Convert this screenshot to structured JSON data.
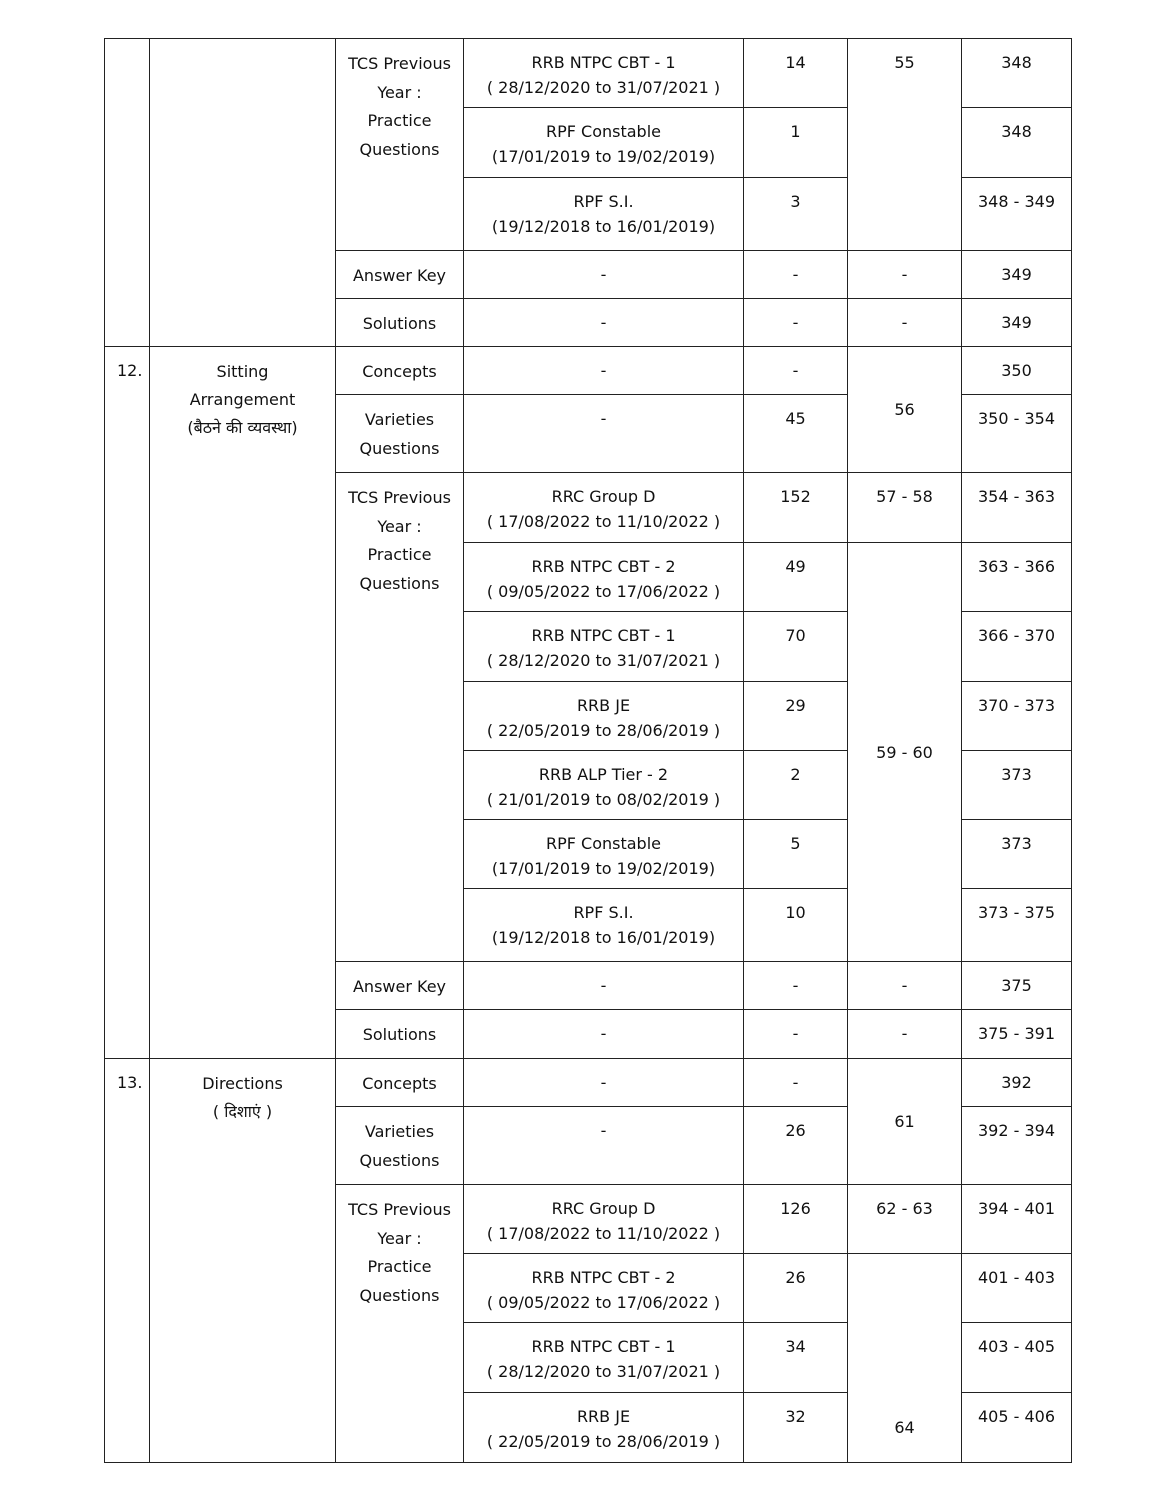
{
  "table": {
    "rows": [
      [
        "",
        "",
        "TCS Previous\nYear :\nPractice\nQuestions",
        "RRB NTPC CBT - 1\n( 28/12/2020 to 31/07/2021 )",
        "14",
        "55",
        "348"
      ],
      [
        "RPF Constable\n(17/01/2019 to 19/02/2019)",
        "1",
        "348"
      ],
      [
        "RPF S.I.\n(19/12/2018 to 16/01/2019)",
        "3",
        "348 - 349"
      ],
      [
        "Answer Key",
        "-",
        "-",
        "-",
        "349"
      ],
      [
        "Solutions",
        "-",
        "-",
        "-",
        "349"
      ],
      [
        "12.",
        "Sitting\nArrangement\n(बैठने की व्यवस्था)",
        "Concepts",
        "-",
        "-",
        "56",
        "350"
      ],
      [
        "Varieties\nQuestions",
        "-",
        "45",
        "350 - 354"
      ],
      [
        "TCS Previous\nYear :\nPractice\nQuestions",
        "RRC Group D\n( 17/08/2022 to 11/10/2022 )",
        "152",
        "57 - 58",
        "354 - 363"
      ],
      [
        "RRB NTPC CBT - 2\n( 09/05/2022 to 17/06/2022 )",
        "49",
        "59 - 60",
        "363 - 366"
      ],
      [
        "RRB NTPC CBT - 1\n( 28/12/2020 to 31/07/2021 )",
        "70",
        "366 - 370"
      ],
      [
        "RRB JE\n( 22/05/2019 to 28/06/2019 )",
        "29",
        "370 - 373"
      ],
      [
        "RRB ALP Tier - 2\n( 21/01/2019 to 08/02/2019 )",
        "2",
        "373"
      ],
      [
        "RPF Constable\n(17/01/2019 to 19/02/2019)",
        "5",
        "373"
      ],
      [
        "RPF S.I.\n(19/12/2018 to 16/01/2019)",
        "10",
        "373 - 375"
      ],
      [
        "Answer Key",
        "-",
        "-",
        "-",
        "375"
      ],
      [
        "Solutions",
        "-",
        "-",
        "-",
        "375 - 391"
      ],
      [
        "13.",
        "Directions\n( दिशाएं )",
        "Concepts",
        "-",
        "-",
        "61",
        "392"
      ],
      [
        "Varieties\nQuestions",
        "-",
        "26",
        "392 - 394"
      ],
      [
        "TCS Previous\nYear :\nPractice\nQuestions",
        "RRC Group D\n( 17/08/2022 to 11/10/2022 )",
        "126",
        "62 - 63",
        "394 - 401"
      ],
      [
        "RRB NTPC CBT - 2\n( 09/05/2022 to 17/06/2022 )",
        "26",
        "64",
        "401 - 403"
      ],
      [
        "RRB NTPC CBT - 1\n( 28/12/2020 to 31/07/2021 )",
        "34",
        "403 - 405"
      ],
      [
        "RRB JE\n( 22/05/2019 to 28/06/2019 )",
        "32",
        "405 - 406"
      ]
    ]
  }
}
